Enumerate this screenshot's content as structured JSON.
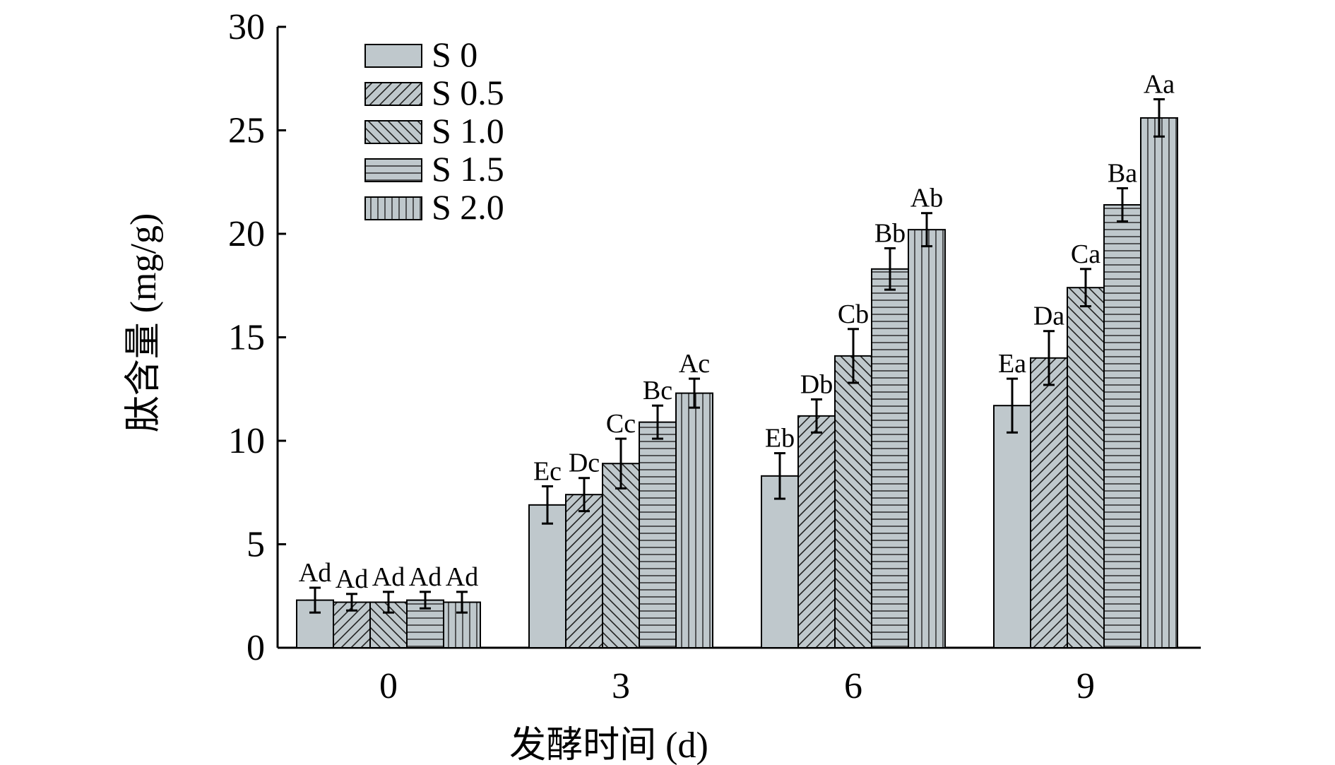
{
  "chart_data": {
    "type": "bar",
    "xlabel": "发酵时间 (d)",
    "ylabel": "肽含量 (mg/g)",
    "categories": [
      "0",
      "3",
      "6",
      "9"
    ],
    "ylim": [
      0,
      30
    ],
    "yticks": [
      0,
      5,
      10,
      15,
      20,
      25,
      30
    ],
    "legend_position": "top-left",
    "grid": false,
    "bar_color": "#bfc8cc",
    "series": [
      {
        "name": "S 0",
        "pattern": "solid",
        "values": [
          2.3,
          6.9,
          8.3,
          11.7
        ],
        "errors": [
          0.6,
          0.9,
          1.1,
          1.3
        ],
        "labels": [
          "Ad",
          "Ec",
          "Eb",
          "Ea"
        ]
      },
      {
        "name": "S 0.5",
        "pattern": "diag-right",
        "values": [
          2.2,
          7.4,
          11.2,
          14.0
        ],
        "errors": [
          0.4,
          0.8,
          0.8,
          1.3
        ],
        "labels": [
          "Ad",
          "Dc",
          "Db",
          "Da"
        ]
      },
      {
        "name": "S 1.0",
        "pattern": "diag-left",
        "values": [
          2.2,
          8.9,
          14.1,
          17.4
        ],
        "errors": [
          0.5,
          1.2,
          1.3,
          0.9
        ],
        "labels": [
          "Ad",
          "Cc",
          "Cb",
          "Ca"
        ]
      },
      {
        "name": "S 1.5",
        "pattern": "horizontal",
        "values": [
          2.3,
          10.9,
          18.3,
          21.4
        ],
        "errors": [
          0.4,
          0.8,
          1.0,
          0.8
        ],
        "labels": [
          "Ad",
          "Bc",
          "Bb",
          "Ba"
        ]
      },
      {
        "name": "S 2.0",
        "pattern": "vertical",
        "values": [
          2.2,
          12.3,
          20.2,
          25.6
        ],
        "errors": [
          0.5,
          0.7,
          0.8,
          0.9
        ],
        "labels": [
          "Ad",
          "Ac",
          "Ab",
          "Aa"
        ]
      }
    ]
  }
}
